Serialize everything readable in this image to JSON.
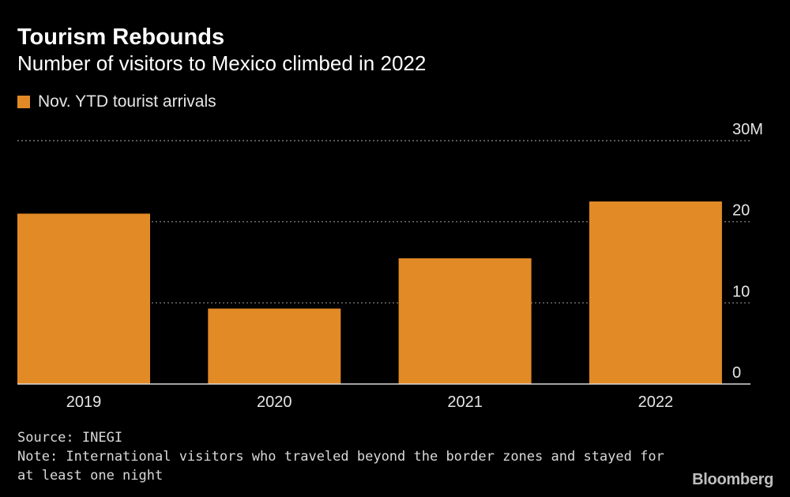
{
  "header": {
    "title": "Tourism Rebounds",
    "subtitle": "Number of visitors to Mexico climbed in 2022"
  },
  "legend": {
    "label": "Nov. YTD tourist arrivals",
    "color": "#e28a26"
  },
  "chart_data": {
    "type": "bar",
    "title": "Tourism Rebounds",
    "subtitle": "Number of visitors to Mexico climbed in 2022",
    "categories": [
      "2019",
      "2020",
      "2021",
      "2022"
    ],
    "series": [
      {
        "name": "Nov. YTD tourist arrivals",
        "values": [
          21.0,
          9.3,
          15.5,
          22.5
        ]
      }
    ],
    "ylim": [
      0,
      30
    ],
    "yticks": [
      0,
      10,
      20,
      30
    ],
    "ytick_labels": [
      "0",
      "10",
      "20",
      "30M"
    ],
    "yaxis_position": "right",
    "grid": true,
    "legend_position": "top-left",
    "bar_color": "#e28a26"
  },
  "footer": {
    "source": "Source: INEGI",
    "note_line1": "Note: International visitors who traveled beyond the border zones and stayed for",
    "note_line2": "at least one night"
  },
  "brand": "Bloomberg"
}
